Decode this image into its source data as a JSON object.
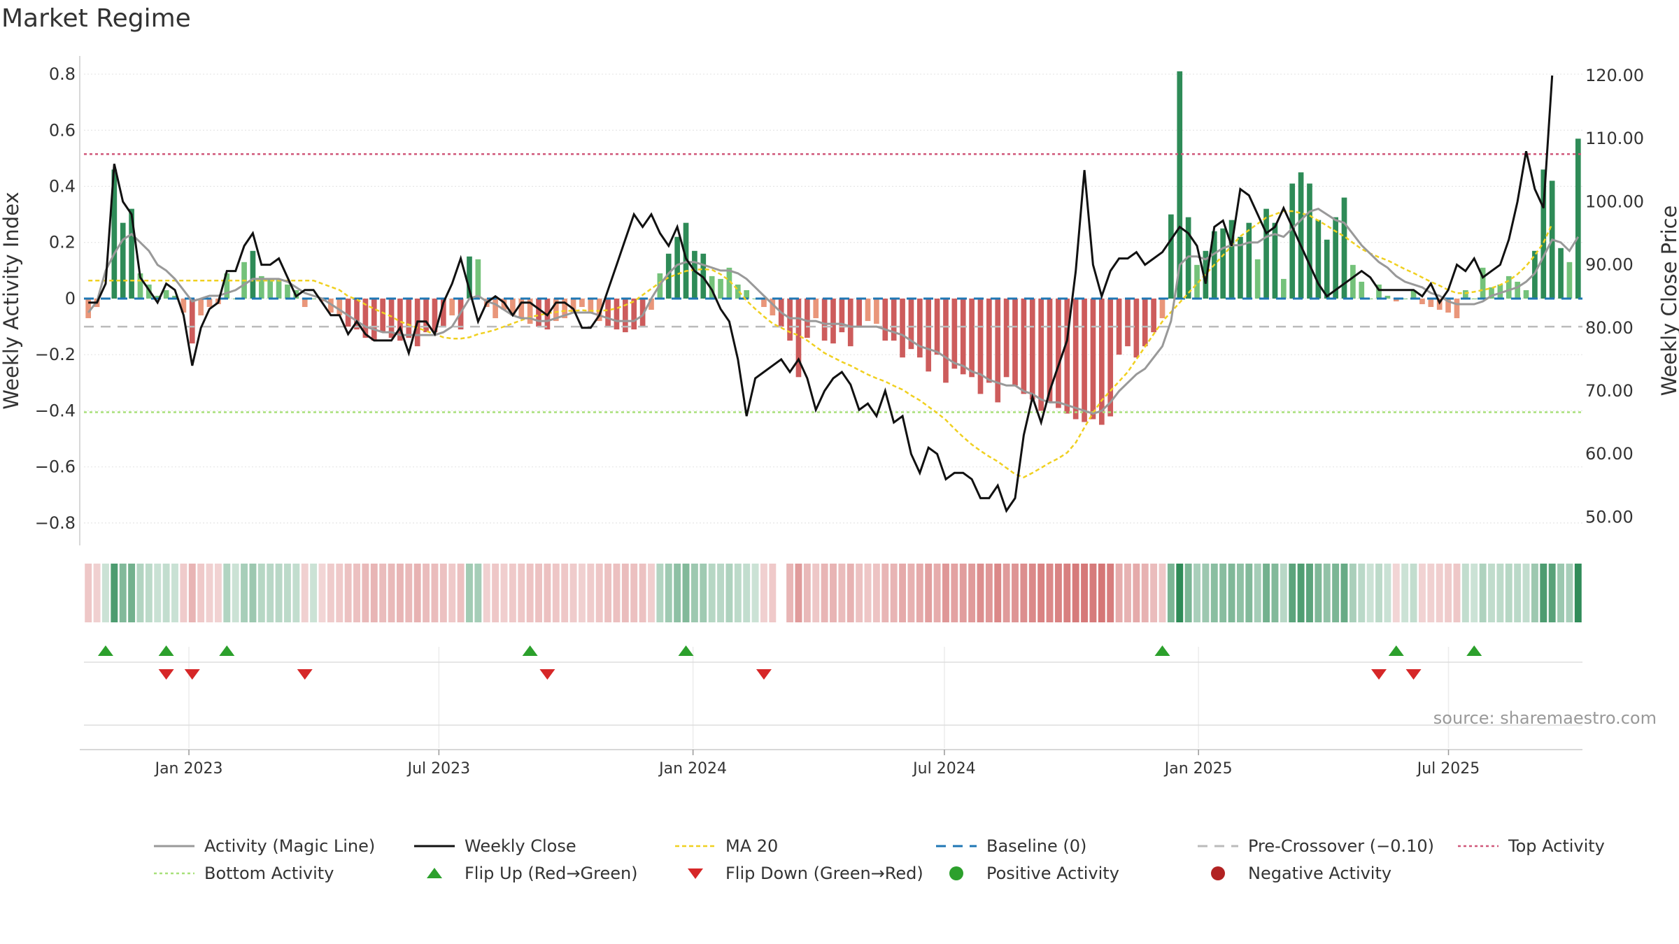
{
  "chart_data": {
    "type": "bar",
    "title": "Market Regime",
    "ylabel_left": "Weekly Activity Index",
    "ylabel_right": "Weekly Close Price",
    "ylim_left": [
      -0.88,
      0.84
    ],
    "ylim_right": [
      45.5,
      122.0
    ],
    "yticks_left": [
      0.8,
      0.6,
      0.4,
      0.2,
      0,
      -0.2,
      -0.4,
      -0.6,
      -0.8
    ],
    "ytick_labels_left": [
      "0.8",
      "0.6",
      "0.4",
      "0.2",
      "0",
      "−0.2",
      "−0.4",
      "−0.6",
      "−0.8"
    ],
    "yticks_right": [
      120,
      110,
      100,
      90,
      80,
      70,
      60,
      50
    ],
    "ytick_labels_right": [
      "120.00",
      "110.00",
      "100.00",
      "90.00",
      "80.00",
      "70.00",
      "60.00",
      "50.00"
    ],
    "x_start": "2022-10-17",
    "x_end": "2025-10-06",
    "x_ticks": [
      {
        "date": "2023-01-01",
        "label": "Jan 2023"
      },
      {
        "date": "2023-07-01",
        "label": "Jul 2023"
      },
      {
        "date": "2024-01-01",
        "label": "Jan 2024"
      },
      {
        "date": "2024-07-01",
        "label": "Jul 2024"
      },
      {
        "date": "2025-01-01",
        "label": "Jan 2025"
      },
      {
        "date": "2025-07-01",
        "label": "Jul 2025"
      }
    ],
    "series": [
      {
        "name": "Weekly Activity Index (bars)",
        "values": [
          -0.07,
          -0.03,
          0.0,
          0.46,
          0.27,
          0.32,
          0.09,
          0.05,
          0.01,
          0.03,
          0.01,
          -0.05,
          -0.16,
          -0.06,
          -0.03,
          -0.02,
          0.09,
          0.0,
          0.13,
          0.17,
          0.08,
          0.07,
          0.07,
          0.05,
          0.03,
          -0.03,
          0.0,
          -0.01,
          -0.05,
          -0.06,
          -0.1,
          -0.11,
          -0.14,
          -0.15,
          -0.12,
          -0.14,
          -0.15,
          -0.14,
          -0.17,
          -0.12,
          -0.12,
          -0.1,
          -0.06,
          -0.11,
          0.15,
          0.14,
          -0.03,
          -0.07,
          -0.04,
          -0.06,
          -0.07,
          -0.09,
          -0.1,
          -0.11,
          -0.08,
          -0.07,
          -0.05,
          -0.03,
          -0.05,
          -0.08,
          -0.1,
          -0.11,
          -0.12,
          -0.11,
          -0.1,
          -0.04,
          0.09,
          0.16,
          0.22,
          0.27,
          0.17,
          0.16,
          0.08,
          0.07,
          0.11,
          0.05,
          0.03,
          0.0,
          -0.03,
          -0.06,
          -0.1,
          -0.15,
          -0.28,
          -0.14,
          -0.07,
          -0.15,
          -0.16,
          -0.12,
          -0.17,
          -0.1,
          -0.08,
          -0.09,
          -0.15,
          -0.15,
          -0.21,
          -0.18,
          -0.21,
          -0.26,
          -0.2,
          -0.3,
          -0.25,
          -0.27,
          -0.28,
          -0.34,
          -0.3,
          -0.37,
          -0.28,
          -0.31,
          -0.34,
          -0.36,
          -0.4,
          -0.37,
          -0.39,
          -0.41,
          -0.43,
          -0.44,
          -0.43,
          -0.45,
          -0.42,
          -0.2,
          -0.17,
          -0.21,
          -0.17,
          -0.12,
          -0.07,
          0.3,
          0.81,
          0.29,
          0.12,
          0.17,
          0.24,
          0.25,
          0.28,
          0.22,
          0.27,
          0.14,
          0.32,
          0.27,
          0.07,
          0.41,
          0.45,
          0.41,
          0.28,
          0.21,
          0.29,
          0.36,
          0.12,
          0.06,
          0.0,
          0.05,
          0.01,
          -0.01,
          0.0,
          0.03,
          -0.02,
          -0.03,
          -0.04,
          -0.05,
          -0.07,
          0.03,
          0.0,
          0.11,
          0.04,
          0.05,
          0.08,
          0.06,
          0.03,
          0.17,
          0.46,
          0.42,
          0.18,
          0.13,
          0.57
        ]
      },
      {
        "name": "Activity (Magic Line)",
        "values": [
          -0.05,
          -0.01,
          0.1,
          0.16,
          0.21,
          0.23,
          0.2,
          0.17,
          0.12,
          0.1,
          0.07,
          0.03,
          -0.01,
          0.0,
          0.01,
          0.01,
          0.02,
          0.03,
          0.05,
          0.07,
          0.07,
          0.07,
          0.07,
          0.06,
          0.04,
          0.02,
          0.01,
          0.0,
          -0.02,
          -0.04,
          -0.06,
          -0.08,
          -0.1,
          -0.11,
          -0.12,
          -0.12,
          -0.13,
          -0.13,
          -0.13,
          -0.13,
          -0.13,
          -0.12,
          -0.1,
          -0.05,
          0.0,
          0.01,
          -0.01,
          -0.02,
          -0.04,
          -0.06,
          -0.07,
          -0.07,
          -0.08,
          -0.08,
          -0.07,
          -0.06,
          -0.05,
          -0.05,
          -0.05,
          -0.06,
          -0.07,
          -0.08,
          -0.08,
          -0.08,
          -0.06,
          0.0,
          0.05,
          0.09,
          0.12,
          0.13,
          0.13,
          0.12,
          0.11,
          0.1,
          0.1,
          0.09,
          0.07,
          0.04,
          0.01,
          -0.02,
          -0.05,
          -0.07,
          -0.07,
          -0.08,
          -0.08,
          -0.09,
          -0.09,
          -0.09,
          -0.1,
          -0.1,
          -0.1,
          -0.1,
          -0.11,
          -0.12,
          -0.13,
          -0.15,
          -0.17,
          -0.18,
          -0.19,
          -0.21,
          -0.23,
          -0.24,
          -0.26,
          -0.27,
          -0.29,
          -0.3,
          -0.31,
          -0.31,
          -0.33,
          -0.34,
          -0.36,
          -0.37,
          -0.37,
          -0.38,
          -0.39,
          -0.4,
          -0.41,
          -0.4,
          -0.37,
          -0.33,
          -0.3,
          -0.27,
          -0.25,
          -0.21,
          -0.17,
          -0.08,
          0.12,
          0.15,
          0.15,
          0.14,
          0.16,
          0.18,
          0.19,
          0.19,
          0.2,
          0.2,
          0.22,
          0.23,
          0.22,
          0.25,
          0.28,
          0.31,
          0.32,
          0.3,
          0.28,
          0.27,
          0.23,
          0.19,
          0.16,
          0.13,
          0.11,
          0.08,
          0.06,
          0.05,
          0.04,
          0.02,
          0.01,
          -0.01,
          -0.02,
          -0.02,
          -0.02,
          -0.01,
          0.01,
          0.02,
          0.03,
          0.04,
          0.06,
          0.09,
          0.15,
          0.21,
          0.2,
          0.17,
          0.22
        ]
      },
      {
        "name": "Weekly Close",
        "values": [
          84,
          84,
          87,
          106,
          100,
          98,
          88,
          86,
          84,
          87,
          86,
          82,
          74,
          80,
          83,
          84,
          89,
          89,
          93,
          95,
          90,
          90,
          91,
          88,
          85,
          86,
          86,
          84,
          82,
          82,
          79,
          81,
          79,
          78,
          78,
          78,
          80,
          76,
          81,
          81,
          79,
          84,
          87,
          91,
          86,
          81,
          84,
          85,
          84,
          82,
          84,
          84,
          83,
          82,
          84,
          84,
          83,
          80,
          80,
          82,
          86,
          90,
          94,
          98,
          96,
          98,
          95,
          93,
          96,
          91,
          89,
          88,
          86,
          83,
          81,
          75,
          66,
          72,
          73,
          74,
          75,
          73,
          75,
          72,
          67,
          70,
          72,
          73,
          71,
          67,
          68,
          66,
          70,
          65,
          66,
          60,
          57,
          61,
          60,
          56,
          57,
          57,
          56,
          53,
          53,
          55,
          51,
          53,
          63,
          69,
          65,
          70,
          74,
          78,
          89,
          105,
          90,
          85,
          89,
          91,
          91,
          92,
          90,
          91,
          92,
          94,
          96,
          95,
          93,
          87,
          96,
          97,
          93,
          102,
          101,
          98,
          95,
          96,
          99,
          96,
          93,
          90,
          87,
          85,
          86,
          87,
          88,
          89,
          88,
          86,
          86,
          86,
          86,
          86,
          85,
          87,
          84,
          86,
          90,
          89,
          91,
          88,
          89,
          90,
          94,
          100,
          108,
          102,
          99,
          120
        ]
      },
      {
        "name": "MA 20",
        "values": [
          87.5,
          87.5,
          87.5,
          87.5,
          87.5,
          87.5,
          87.5,
          87.5,
          87.5,
          87.5,
          87.5,
          87.5,
          87.5,
          87.5,
          87.5,
          87.5,
          87.5,
          87.5,
          87.5,
          87.5,
          87.5,
          87.5,
          87.5,
          87.5,
          87.5,
          87.5,
          87.5,
          87.0,
          86.5,
          86.0,
          85.0,
          84.5,
          83.7,
          83.0,
          82.4,
          81.8,
          81.0,
          80.5,
          80.0,
          79.5,
          79.0,
          78.5,
          78.3,
          78.3,
          78.5,
          79.0,
          79.3,
          79.7,
          80.2,
          80.7,
          81.2,
          81.7,
          82.0,
          82.3,
          82.5,
          82.7,
          82.7,
          82.8,
          82.7,
          82.7,
          82.8,
          83.1,
          83.6,
          84.2,
          85.2,
          86.2,
          87.2,
          88.0,
          88.5,
          89.0,
          89.2,
          89.3,
          89.2,
          88.5,
          87.5,
          86.0,
          84.3,
          83.0,
          81.8,
          80.7,
          80.0,
          79.3,
          78.8,
          78.0,
          77.0,
          76.0,
          75.3,
          74.6,
          74.0,
          73.3,
          72.6,
          72.0,
          71.5,
          70.8,
          70.2,
          69.3,
          68.5,
          67.5,
          66.5,
          65.4,
          64.0,
          62.7,
          61.5,
          60.5,
          59.6,
          58.8,
          57.8,
          56.8,
          56.3,
          57.0,
          57.8,
          58.6,
          59.3,
          60.2,
          61.8,
          64.2,
          66.5,
          68.5,
          70.0,
          71.5,
          73.0,
          75.0,
          77.0,
          79.0,
          81.0,
          82.5,
          84.0,
          85.5,
          87.0,
          88.5,
          90.0,
          91.5,
          93.0,
          94.5,
          95.5,
          96.5,
          97.5,
          98.0,
          98.5,
          98.5,
          98.2,
          97.8,
          97.0,
          96.2,
          95.3,
          94.5,
          93.5,
          92.5,
          91.8,
          91.2,
          90.7,
          90.0,
          89.3,
          88.7,
          88.0,
          87.3,
          86.7,
          86.0,
          85.5,
          85.5,
          85.7,
          86.0,
          86.3,
          86.8,
          87.5,
          88.5,
          89.8,
          91.5,
          93.5,
          96.5
        ]
      }
    ],
    "reference_lines": {
      "baseline_value": 0,
      "pre_crossover_value": -0.1,
      "top_activity_value": 0.515,
      "bottom_activity_value": -0.405
    },
    "markers": {
      "flip_up_weeks": [
        2,
        9,
        16,
        51,
        69,
        124,
        151,
        160
      ],
      "flip_down_weeks": [
        9,
        12,
        25,
        53,
        78,
        149,
        153
      ]
    },
    "strip_gap_weeks": [
      80
    ],
    "legend": [
      {
        "key": "activity",
        "label": "Activity (Magic Line)"
      },
      {
        "key": "close",
        "label": "Weekly Close"
      },
      {
        "key": "ma20",
        "label": "MA 20"
      },
      {
        "key": "baseline",
        "label": "Baseline (0)"
      },
      {
        "key": "precross",
        "label": "Pre-Crossover (−0.10)"
      },
      {
        "key": "top",
        "label": "Top Activity"
      },
      {
        "key": "bottom",
        "label": "Bottom Activity"
      },
      {
        "key": "flipup",
        "label": "Flip Up (Red→Green)"
      },
      {
        "key": "flipdown",
        "label": "Flip Down (Green→Red)"
      },
      {
        "key": "positive",
        "label": "Positive Activity"
      },
      {
        "key": "negative",
        "label": "Negative Activity"
      }
    ],
    "source": "source: sharemaestro.com"
  },
  "colors": {
    "pos_strong": "#2e8b57",
    "pos_weak": "#74c27a",
    "neg_strong": "#cd5c5c",
    "neg_weak": "#e9967a",
    "activity_line": "#999999",
    "close_line": "#111111",
    "ma20_line": "#f0d020",
    "baseline": "#1f77b4",
    "precross": "#bbbbbb",
    "top_line": "#d0587a",
    "bottom_line": "#a8e07a",
    "flip_up": "#2ca02c",
    "flip_down": "#d62728",
    "positive_dot": "#2ca02c",
    "negative_dot": "#b22222"
  }
}
